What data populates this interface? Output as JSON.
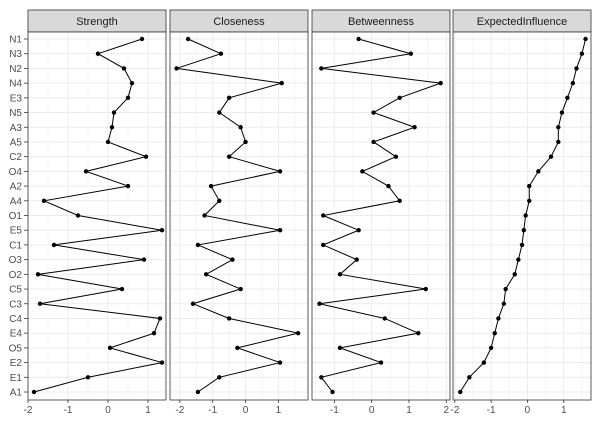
{
  "chart_data": {
    "type": "line",
    "title": "",
    "xlabel": "",
    "ylabel": "",
    "grid": true,
    "categories": [
      "N1",
      "N3",
      "N2",
      "N4",
      "E3",
      "N5",
      "A3",
      "A5",
      "C2",
      "O4",
      "A2",
      "A4",
      "O1",
      "E5",
      "C1",
      "O3",
      "O2",
      "C5",
      "C3",
      "C4",
      "E4",
      "O5",
      "E2",
      "E1",
      "A1"
    ],
    "panels": [
      {
        "name": "Strength",
        "xlim": [
          -2.0,
          1.45
        ],
        "ticks": [
          -2,
          -1,
          0,
          1
        ],
        "values": [
          0.85,
          -0.25,
          0.4,
          0.6,
          0.5,
          0.15,
          0.1,
          0.0,
          0.95,
          -0.55,
          0.5,
          -1.6,
          -0.75,
          1.35,
          -1.35,
          0.9,
          -1.75,
          0.35,
          -1.7,
          1.3,
          1.15,
          0.05,
          1.35,
          -0.5,
          -1.85
        ]
      },
      {
        "name": "Closeness",
        "xlim": [
          -2.3,
          1.9
        ],
        "ticks": [
          -2,
          -1,
          0,
          1
        ],
        "values": [
          -1.75,
          -0.75,
          -2.1,
          1.1,
          -0.5,
          -0.8,
          -0.15,
          0.0,
          -0.5,
          1.05,
          -1.05,
          -0.8,
          -1.25,
          1.05,
          -1.45,
          -0.4,
          -1.2,
          -0.15,
          -1.6,
          -0.5,
          1.6,
          -0.25,
          1.05,
          -0.8,
          -1.45
        ]
      },
      {
        "name": "Betweenness",
        "xlim": [
          -1.6,
          2.1
        ],
        "ticks": [
          -1,
          0,
          1,
          2
        ],
        "values": [
          -0.35,
          1.05,
          -1.35,
          1.85,
          0.75,
          0.05,
          1.15,
          0.05,
          0.65,
          -0.25,
          0.45,
          0.75,
          -1.3,
          -0.35,
          -1.3,
          -0.4,
          -0.85,
          1.45,
          -1.4,
          0.35,
          1.25,
          -0.85,
          0.25,
          -1.35,
          -1.05
        ]
      },
      {
        "name": "ExpectedInfluence",
        "xlim": [
          -2.05,
          1.75
        ],
        "ticks": [
          -2,
          -1,
          0,
          1
        ],
        "values": [
          1.6,
          1.5,
          1.35,
          1.25,
          1.1,
          0.95,
          0.85,
          0.85,
          0.65,
          0.3,
          0.05,
          0.05,
          -0.05,
          -0.1,
          -0.15,
          -0.25,
          -0.35,
          -0.6,
          -0.65,
          -0.8,
          -0.9,
          -1.0,
          -1.2,
          -1.6,
          -1.85
        ]
      }
    ]
  }
}
